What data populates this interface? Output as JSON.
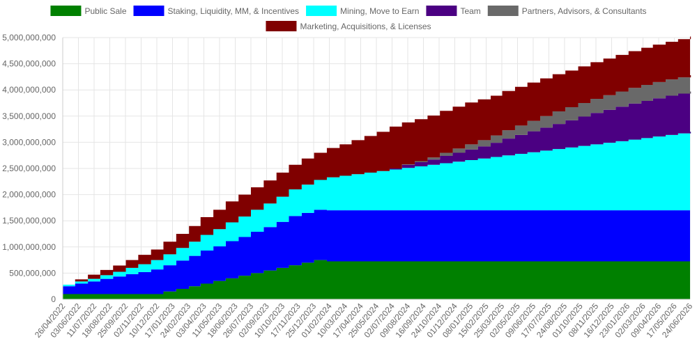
{
  "chart_data": {
    "type": "area",
    "stacked": true,
    "legend_position": "top",
    "grid": true,
    "title": "",
    "xlabel": "",
    "ylabel": "",
    "ylim": [
      0,
      5000000000
    ],
    "y_ticks": [
      0,
      500000000,
      1000000000,
      1500000000,
      2000000000,
      2500000000,
      3000000000,
      3500000000,
      4000000000,
      4500000000,
      5000000000
    ],
    "y_tick_labels": [
      "0",
      "500,000,000",
      "1,000,000,000",
      "1,500,000,000",
      "2,000,000,000",
      "2,500,000,000",
      "3,000,000,000",
      "3,500,000,000",
      "4,000,000,000",
      "4,500,000,000",
      "5,000,000,000"
    ],
    "x_tick_labels": [
      "26/04/2022",
      "03/06/2022",
      "11/07/2022",
      "18/08/2022",
      "25/09/2022",
      "02/11/2022",
      "10/12/2022",
      "17/01/2023",
      "24/02/2023",
      "03/04/2023",
      "11/05/2023",
      "18/06/2023",
      "26/07/2023",
      "02/09/2023",
      "10/10/2023",
      "17/11/2023",
      "25/12/2023",
      "01/02/2024",
      "10/03/2024",
      "17/04/2024",
      "25/05/2024",
      "02/07/2024",
      "09/08/2024",
      "16/09/2024",
      "24/10/2024",
      "01/12/2024",
      "08/01/2025",
      "15/02/2025",
      "25/03/2025",
      "02/05/2025",
      "09/06/2025",
      "17/07/2025",
      "24/08/2025",
      "01/10/2025",
      "08/11/2025",
      "16/12/2025",
      "23/01/2026",
      "02/03/2026",
      "09/04/2026",
      "17/05/2026",
      "24/06/2026"
    ],
    "x_dates": [
      "2022-04-26",
      "2022-05-26",
      "2022-06-26",
      "2022-07-26",
      "2022-08-26",
      "2022-09-26",
      "2022-10-26",
      "2022-11-26",
      "2022-12-26",
      "2023-01-26",
      "2023-02-26",
      "2023-03-26",
      "2023-04-26",
      "2023-05-26",
      "2023-06-26",
      "2023-07-26",
      "2023-08-26",
      "2023-09-26",
      "2023-10-26",
      "2023-11-26",
      "2023-12-26",
      "2024-01-26",
      "2024-02-26",
      "2024-03-26",
      "2024-04-26",
      "2024-05-26",
      "2024-06-26",
      "2024-07-26",
      "2024-08-26",
      "2024-09-26",
      "2024-10-26",
      "2024-11-26",
      "2024-12-26",
      "2025-01-26",
      "2025-02-26",
      "2025-03-26",
      "2025-04-26",
      "2025-05-26",
      "2025-06-26",
      "2025-07-26",
      "2025-08-26",
      "2025-09-26",
      "2025-10-26",
      "2025-11-26",
      "2025-12-26",
      "2026-01-26",
      "2026-02-26",
      "2026-03-26",
      "2026-04-26",
      "2026-05-26",
      "2026-06-26"
    ],
    "series": [
      {
        "name": "Public Sale",
        "color": "#008000",
        "values": [
          100000000,
          100000000,
          100000000,
          100000000,
          100000000,
          100000000,
          100000000,
          100000000,
          150000000,
          200000000,
          250000000,
          300000000,
          350000000,
          400000000,
          450000000,
          500000000,
          550000000,
          600000000,
          650000000,
          700000000,
          750000000,
          725000000,
          725000000,
          725000000,
          725000000,
          725000000,
          725000000,
          725000000,
          725000000,
          725000000,
          725000000,
          725000000,
          725000000,
          725000000,
          725000000,
          725000000,
          725000000,
          725000000,
          725000000,
          725000000,
          725000000,
          725000000,
          725000000,
          725000000,
          725000000,
          725000000,
          725000000,
          725000000,
          725000000,
          725000000,
          725000000
        ]
      },
      {
        "name": "Staking, Liquidity, MM, & Incentives",
        "color": "#0000ff",
        "values": [
          150000000,
          200000000,
          240000000,
          290000000,
          335000000,
          380000000,
          420000000,
          470000000,
          500000000,
          540000000,
          580000000,
          630000000,
          660000000,
          710000000,
          740000000,
          790000000,
          830000000,
          880000000,
          940000000,
          950000000,
          960000000,
          975000000,
          975000000,
          975000000,
          975000000,
          975000000,
          975000000,
          975000000,
          975000000,
          975000000,
          975000000,
          975000000,
          975000000,
          975000000,
          975000000,
          975000000,
          975000000,
          975000000,
          975000000,
          975000000,
          975000000,
          975000000,
          975000000,
          975000000,
          975000000,
          975000000,
          975000000,
          975000000,
          975000000,
          975000000,
          975000000
        ]
      },
      {
        "name": "Mining, Move to Earn",
        "color": "#00ffff",
        "values": [
          30000000,
          40000000,
          50000000,
          70000000,
          90000000,
          120000000,
          150000000,
          180000000,
          210000000,
          240000000,
          270000000,
          300000000,
          330000000,
          360000000,
          390000000,
          420000000,
          450000000,
          480000000,
          510000000,
          540000000,
          570000000,
          630000000,
          660000000,
          690000000,
          720000000,
          750000000,
          780000000,
          810000000,
          840000000,
          870000000,
          900000000,
          930000000,
          960000000,
          990000000,
          1020000000,
          1050000000,
          1080000000,
          1110000000,
          1140000000,
          1170000000,
          1200000000,
          1230000000,
          1260000000,
          1290000000,
          1320000000,
          1350000000,
          1380000000,
          1410000000,
          1440000000,
          1470000000,
          1500000000
        ]
      },
      {
        "name": "Team",
        "color": "#4b0082",
        "values": [
          0,
          0,
          0,
          0,
          0,
          0,
          0,
          0,
          0,
          0,
          0,
          0,
          0,
          0,
          0,
          0,
          0,
          0,
          0,
          0,
          0,
          0,
          0,
          0,
          0,
          0,
          20000000,
          60000000,
          80000000,
          100000000,
          140000000,
          170000000,
          200000000,
          230000000,
          270000000,
          320000000,
          360000000,
          400000000,
          440000000,
          480000000,
          520000000,
          560000000,
          600000000,
          630000000,
          660000000,
          690000000,
          710000000,
          730000000,
          750000000,
          760000000,
          770000000
        ]
      },
      {
        "name": "Partners, Advisors, & Consultants",
        "color": "#696969",
        "values": [
          0,
          0,
          0,
          0,
          0,
          0,
          0,
          0,
          0,
          0,
          0,
          0,
          0,
          0,
          0,
          0,
          0,
          0,
          0,
          0,
          0,
          0,
          0,
          0,
          0,
          0,
          0,
          10000000,
          20000000,
          40000000,
          60000000,
          80000000,
          100000000,
          120000000,
          140000000,
          160000000,
          180000000,
          200000000,
          220000000,
          240000000,
          250000000,
          260000000,
          270000000,
          280000000,
          290000000,
          300000000,
          305000000,
          310000000,
          310000000,
          310000000,
          310000000
        ]
      },
      {
        "name": "Marketing, Acquisitions, & Licenses",
        "color": "#800000",
        "values": [
          0,
          40000000,
          80000000,
          100000000,
          120000000,
          150000000,
          180000000,
          200000000,
          240000000,
          270000000,
          300000000,
          340000000,
          370000000,
          400000000,
          420000000,
          430000000,
          440000000,
          460000000,
          470000000,
          500000000,
          520000000,
          560000000,
          600000000,
          650000000,
          700000000,
          750000000,
          800000000,
          800000000,
          800000000,
          800000000,
          800000000,
          800000000,
          800000000,
          780000000,
          760000000,
          750000000,
          740000000,
          730000000,
          720000000,
          710000000,
          700000000,
          700000000,
          700000000,
          700000000,
          700000000,
          700000000,
          710000000,
          715000000,
          720000000,
          730000000,
          740000000
        ]
      }
    ]
  }
}
